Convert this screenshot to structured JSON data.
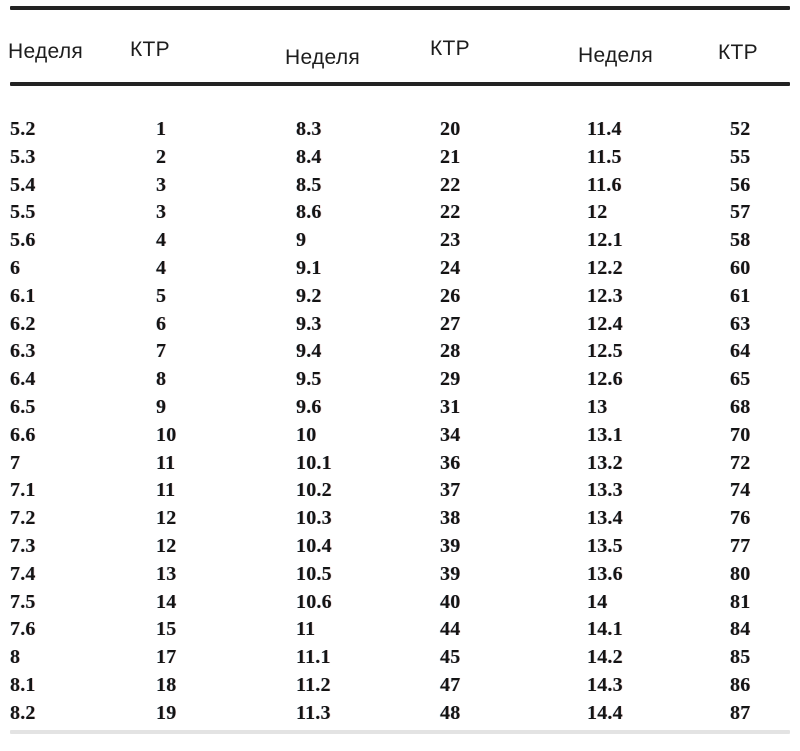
{
  "page": {
    "background_color": "#ffffff",
    "rule_color": "#232323",
    "bottom_rule_color": "#e3e3e3",
    "text_color": "#141414"
  },
  "table": {
    "headers": [
      "Неделя",
      "КТР",
      "Неделя",
      "КТР",
      "Неделя",
      "КТР"
    ],
    "rows": [
      [
        "5.2",
        "1",
        "8.3",
        "20",
        "11.4",
        "52"
      ],
      [
        "5.3",
        "2",
        "8.4",
        "21",
        "11.5",
        "55"
      ],
      [
        "5.4",
        "3",
        "8.5",
        "22",
        "11.6",
        "56"
      ],
      [
        "5.5",
        "3",
        "8.6",
        "22",
        "12",
        "57"
      ],
      [
        "5.6",
        "4",
        "9",
        "23",
        "12.1",
        "58"
      ],
      [
        "6",
        "4",
        "9.1",
        "24",
        "12.2",
        "60"
      ],
      [
        "6.1",
        "5",
        "9.2",
        "26",
        "12.3",
        "61"
      ],
      [
        "6.2",
        "6",
        "9.3",
        "27",
        "12.4",
        "63"
      ],
      [
        "6.3",
        "7",
        "9.4",
        "28",
        "12.5",
        "64"
      ],
      [
        "6.4",
        "8",
        "9.5",
        "29",
        "12.6",
        "65"
      ],
      [
        "6.5",
        "9",
        "9.6",
        "31",
        "13",
        "68"
      ],
      [
        "6.6",
        "10",
        "10",
        "34",
        "13.1",
        "70"
      ],
      [
        "7",
        "11",
        "10.1",
        "36",
        "13.2",
        "72"
      ],
      [
        "7.1",
        "11",
        "10.2",
        "37",
        "13.3",
        "74"
      ],
      [
        "7.2",
        "12",
        "10.3",
        "38",
        "13.4",
        "76"
      ],
      [
        "7.3",
        "12",
        "10.4",
        "39",
        "13.5",
        "77"
      ],
      [
        "7.4",
        "13",
        "10.5",
        "39",
        "13.6",
        "80"
      ],
      [
        "7.5",
        "14",
        "10.6",
        "40",
        "14",
        "81"
      ],
      [
        "7.6",
        "15",
        "11",
        "44",
        "14.1",
        "84"
      ],
      [
        "8",
        "17",
        "11.1",
        "45",
        "14.2",
        "85"
      ],
      [
        "8.1",
        "18",
        "11.2",
        "47",
        "14.3",
        "86"
      ],
      [
        "8.2",
        "19",
        "11.3",
        "48",
        "14.4",
        "87"
      ]
    ]
  }
}
